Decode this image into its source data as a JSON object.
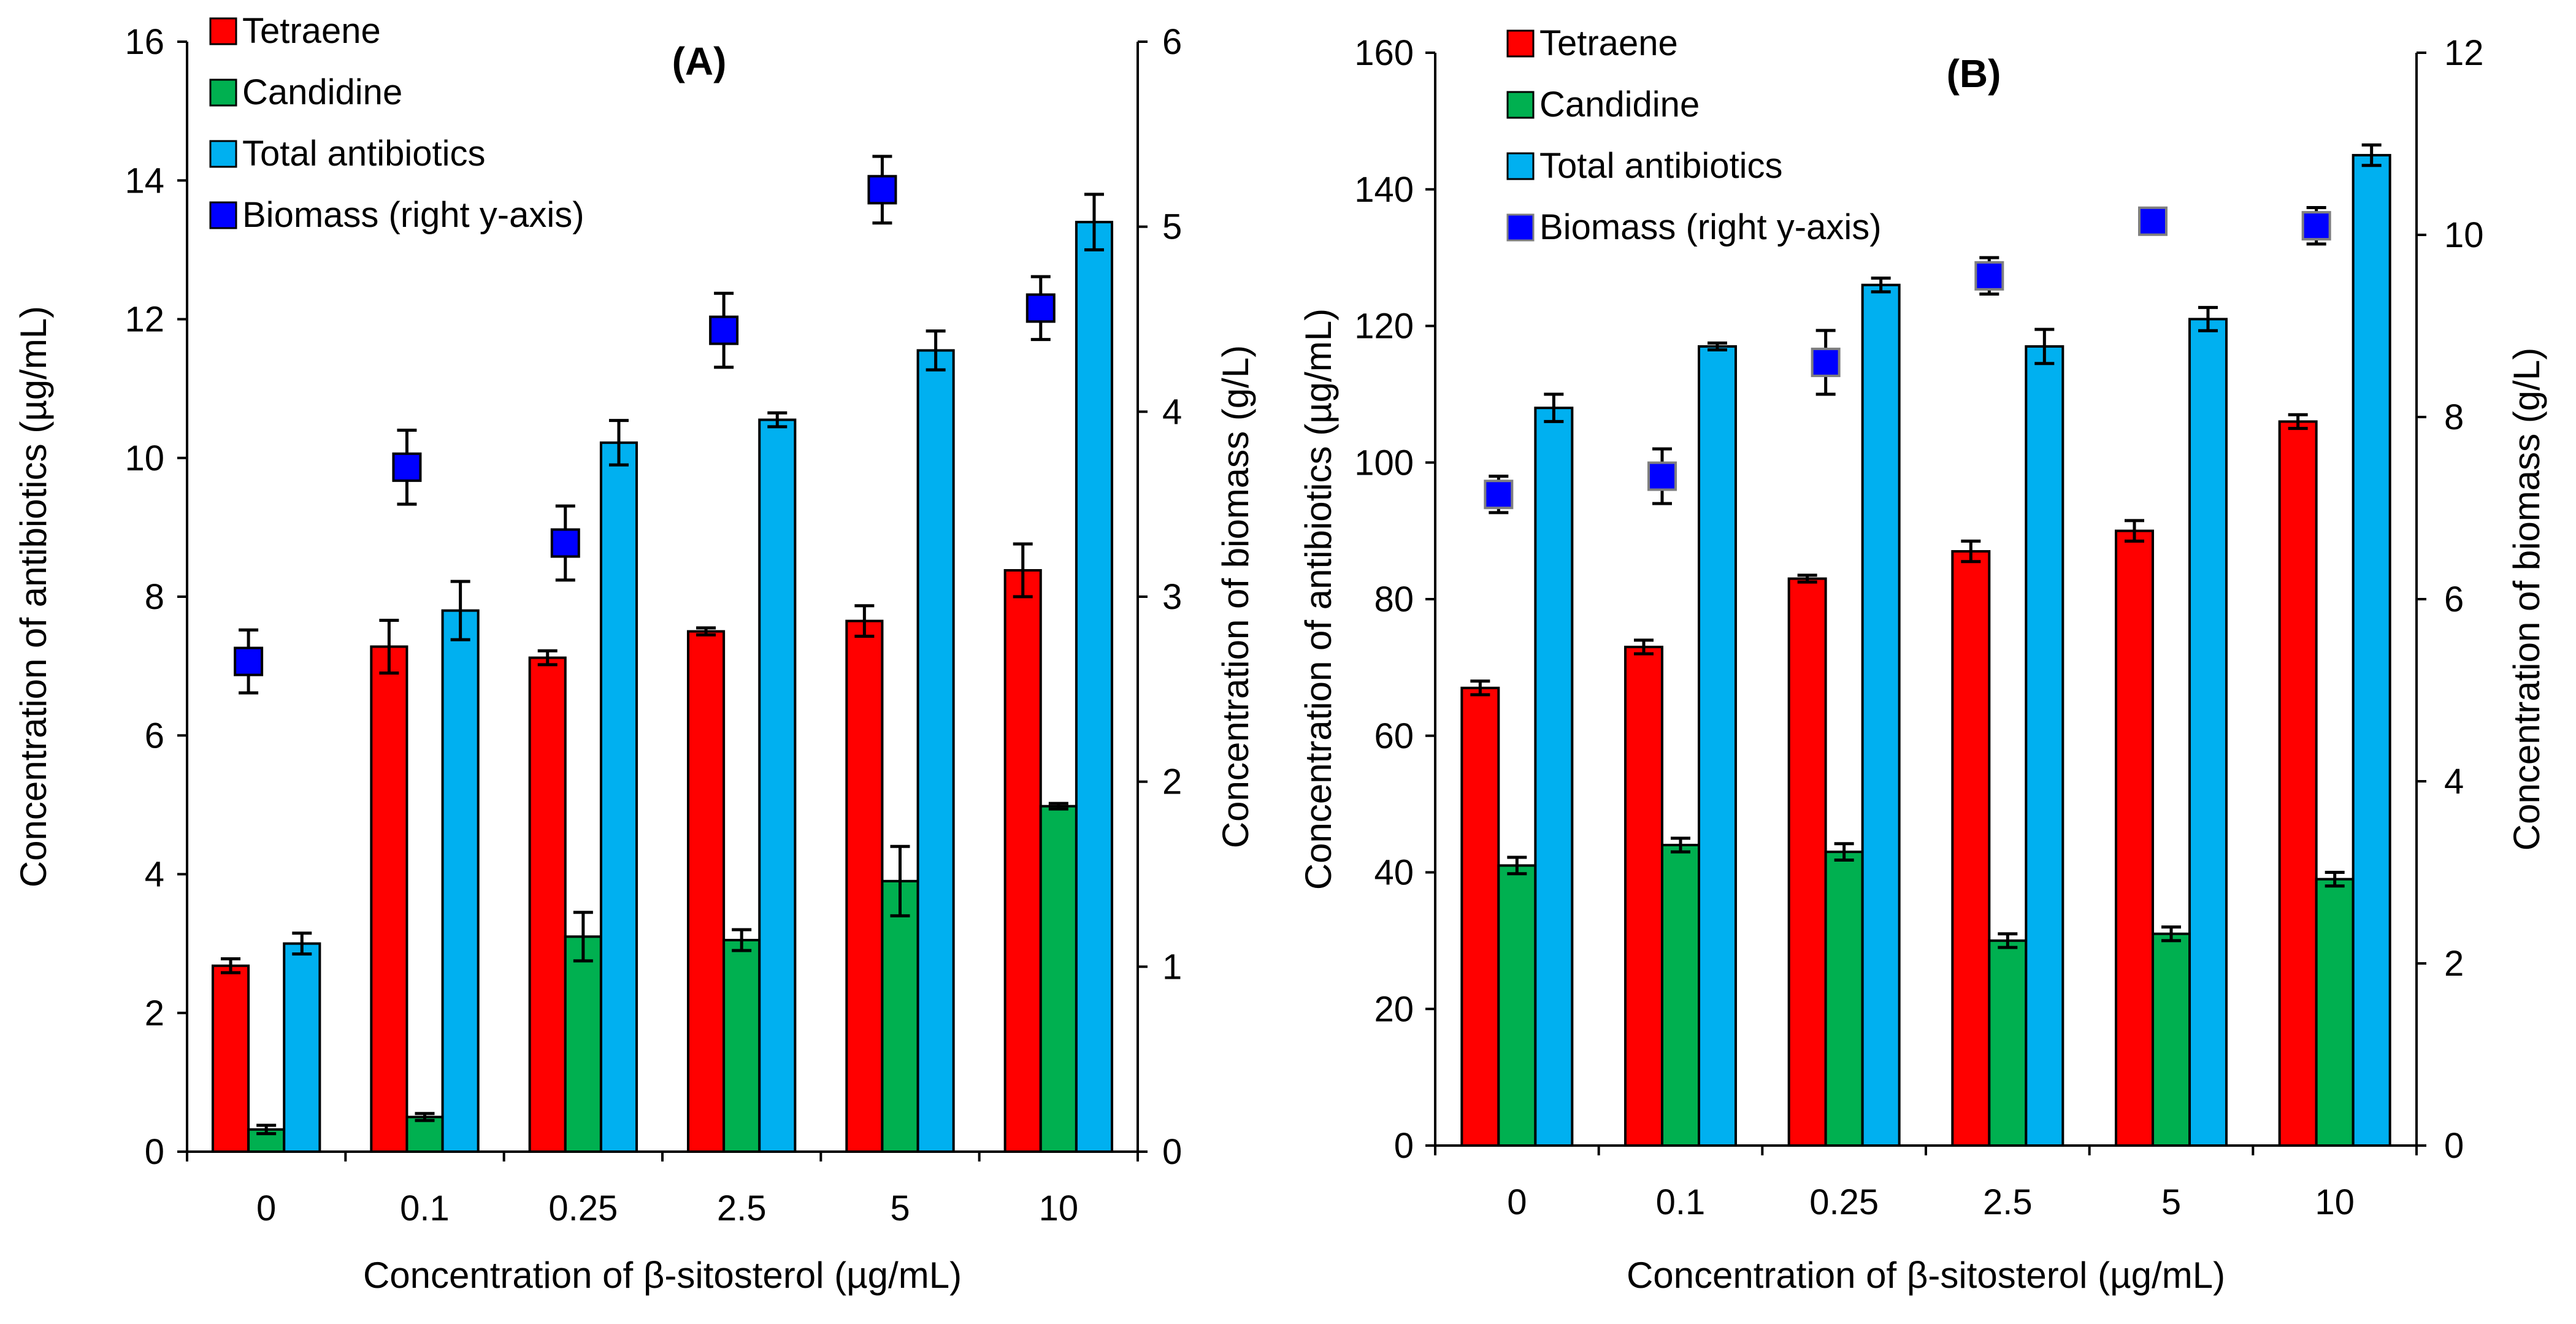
{
  "chart_data": [
    {
      "type": "bar",
      "panel_label": "(A)",
      "categories": [
        "0",
        "0.1",
        "0.25",
        "2.5",
        "5",
        "10"
      ],
      "xlabel": "Concentration of β-sitosterol (µg/mL)",
      "ylabel": "Concentration of antibiotics (µg/mL)",
      "y2label": "Concentration of biomass (g/L)",
      "ylim": [
        0,
        16
      ],
      "y2lim": [
        0,
        6
      ],
      "yticks": [
        "0",
        "2",
        "4",
        "6",
        "8",
        "10",
        "12",
        "14",
        "16"
      ],
      "y2ticks": [
        "0",
        "1",
        "2",
        "3",
        "4",
        "5",
        "6"
      ],
      "legend_position": "top-left",
      "series": [
        {
          "name": "Tetraene",
          "color": "#ff0000",
          "values": [
            2.68,
            7.28,
            7.12,
            7.5,
            7.65,
            8.38
          ],
          "errors": [
            0.1,
            0.38,
            0.1,
            0.05,
            0.22,
            0.38
          ]
        },
        {
          "name": "Candidine",
          "color": "#00b050",
          "values": [
            0.32,
            0.5,
            3.1,
            3.05,
            3.9,
            4.98
          ],
          "errors": [
            0.06,
            0.05,
            0.35,
            0.15,
            0.5,
            0.04
          ]
        },
        {
          "name": "Total antibiotics",
          "color": "#00b0f0",
          "values": [
            3.0,
            7.8,
            10.22,
            10.55,
            11.55,
            13.4
          ],
          "errors": [
            0.15,
            0.42,
            0.32,
            0.1,
            0.28,
            0.4
          ]
        }
      ],
      "biomass": {
        "name": "Biomass (right y-axis)",
        "color": "#0000ff",
        "values": [
          2.65,
          3.7,
          3.29,
          4.44,
          5.2,
          4.56
        ],
        "errors": [
          0.17,
          0.2,
          0.2,
          0.2,
          0.18,
          0.17
        ]
      }
    },
    {
      "type": "bar",
      "panel_label": "(B)",
      "categories": [
        "0",
        "0.1",
        "0.25",
        "2.5",
        "5",
        "10"
      ],
      "xlabel": "Concentration of β-sitosterol (µg/mL)",
      "ylabel": "Concentration of antibiotics (µg/mL)",
      "y2label": "Concentration of biomass (g/L)",
      "ylim": [
        0,
        160
      ],
      "y2lim": [
        0,
        12
      ],
      "yticks": [
        "0",
        "20",
        "40",
        "60",
        "80",
        "100",
        "120",
        "140",
        "160"
      ],
      "y2ticks": [
        "0",
        "2",
        "4",
        "6",
        "8",
        "10",
        "12"
      ],
      "legend_position": "top-left",
      "series": [
        {
          "name": "Tetraene",
          "color": "#ff0000",
          "values": [
            67,
            73,
            83,
            87,
            90,
            106
          ],
          "errors": [
            1,
            1,
            0.5,
            1.5,
            1.5,
            1
          ]
        },
        {
          "name": "Candidine",
          "color": "#00b050",
          "values": [
            41,
            44,
            43,
            30,
            31,
            39
          ],
          "errors": [
            1.2,
            1,
            1.2,
            1,
            1,
            1
          ]
        },
        {
          "name": "Total antibiotics",
          "color": "#00b0f0",
          "values": [
            108,
            117,
            126,
            117,
            121,
            145
          ],
          "errors": [
            2,
            0.5,
            1,
            2.5,
            1.7,
            1.5
          ]
        }
      ],
      "biomass": {
        "name": "Biomass (right y-axis)",
        "color": "#0000ff",
        "values": [
          7.15,
          7.35,
          8.6,
          9.55,
          10.15,
          10.1
        ],
        "errors": [
          0.2,
          0.3,
          0.35,
          0.2,
          0.12,
          0.2
        ]
      }
    }
  ]
}
